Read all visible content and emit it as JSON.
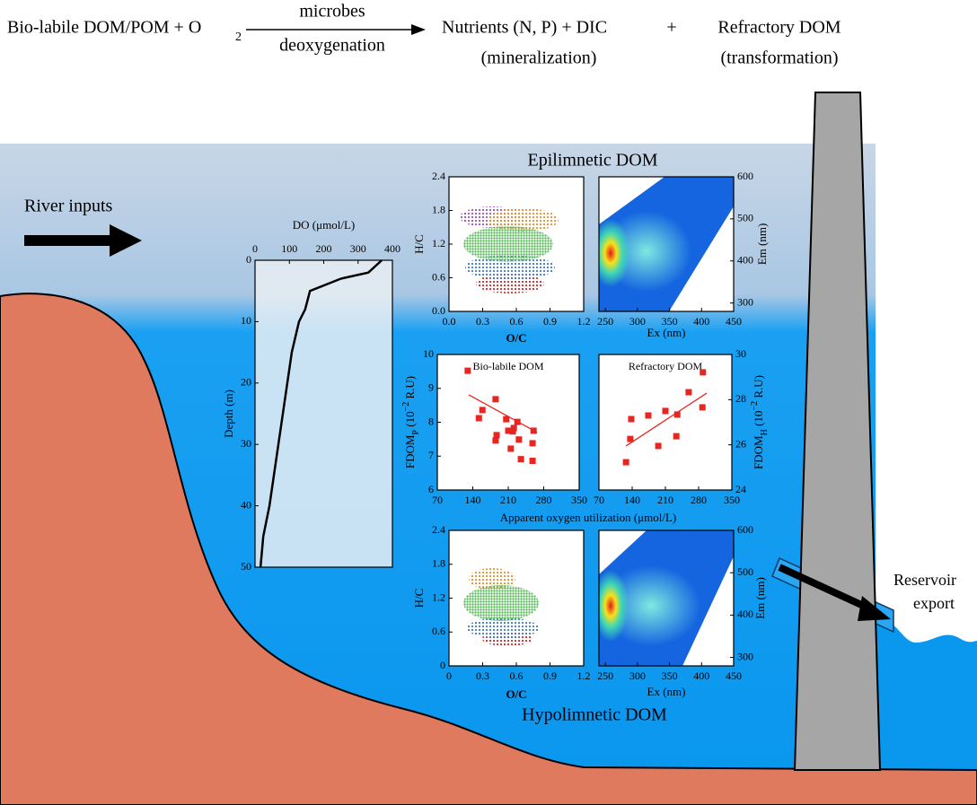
{
  "equation": {
    "reactants": "Bio-labile DOM/POM + O",
    "o2_subscript": "2",
    "arrow_top": "microbes",
    "arrow_bottom": "deoxygenation",
    "product1": "Nutrients (N, P) + DIC",
    "product1_note": "(mineralization)",
    "plus": "+",
    "product2": "Refractory DOM",
    "product2_note": "(transformation)"
  },
  "river_inputs": "River inputs",
  "reservoir_export": [
    "Reservoir",
    "export"
  ],
  "epilimnion_title": "Epilimnetic DOM",
  "hypolimnion_title": "Hypolimnetic DOM",
  "do_profile": {
    "type": "line",
    "x_label": "DO (μmol/L)",
    "y_label": "Depth (m)",
    "xlim": [
      0,
      400
    ],
    "xticks": [
      0,
      100,
      200,
      300,
      400
    ],
    "ylim": [
      0,
      50
    ],
    "yticks": [
      0,
      10,
      20,
      30,
      40,
      50
    ],
    "depth": [
      0,
      2,
      3,
      5,
      8,
      10,
      15,
      20,
      25,
      30,
      35,
      40,
      45,
      50
    ],
    "do": [
      369,
      330,
      250,
      160,
      146,
      128,
      107,
      94,
      81,
      68,
      55,
      42,
      24,
      16
    ]
  },
  "epi_vk": {
    "x_label": "O/C",
    "y_label": "H/C",
    "xlim": [
      0,
      1.2
    ],
    "xticks": [
      {
        "value": 0,
        "label": "0.0"
      },
      0.3,
      0.6,
      0.9,
      1.2
    ],
    "ylim": [
      0,
      2.4
    ],
    "yticks": [
      {
        "value": 0,
        "label": "0.0"
      },
      0.6,
      1.2,
      1.8,
      2.4
    ]
  },
  "epi_eem": {
    "x_label": "Ex (nm)",
    "y_label": "Em (nm)",
    "xlim": [
      240,
      450
    ],
    "xticks": [
      250,
      300,
      350,
      400,
      450
    ],
    "ylim": [
      280,
      600
    ],
    "yticks": [
      300,
      400,
      500,
      600
    ]
  },
  "aou": {
    "x_label": "Apparent oxygen utilization (μmol/L)",
    "bio": {
      "title": "Bio-labile DOM",
      "y_label_parts": [
        "FDOM",
        "P",
        " (10",
        "−2",
        " R.U)"
      ],
      "xlim": [
        70,
        350
      ],
      "xticks": [
        70,
        140,
        210,
        280,
        350
      ],
      "ylim": [
        6,
        10
      ],
      "yticks": [
        6,
        7,
        8,
        9,
        10
      ],
      "color": "#e8251f",
      "x": [
        130,
        159,
        152,
        185,
        187,
        185,
        206,
        210,
        219,
        221,
        228,
        231,
        215,
        235,
        260,
        258,
        258
      ],
      "y": [
        9.52,
        8.36,
        8.12,
        8.68,
        7.62,
        7.46,
        8.09,
        7.75,
        7.73,
        7.83,
        8.01,
        7.49,
        7.22,
        6.91,
        7.75,
        7.38,
        6.86
      ],
      "fit_x": [
        132,
        267
      ],
      "fit_y": [
        8.81,
        7.7
      ]
    },
    "ref": {
      "title": "Refractory DOM",
      "y_label_parts": [
        "FDOM",
        "H",
        " (10",
        "−2",
        " R.U)"
      ],
      "xlim": [
        70,
        350
      ],
      "xticks": [
        70,
        140,
        210,
        280,
        350
      ],
      "ylim": [
        24,
        30
      ],
      "yticks": [
        24,
        26,
        28,
        30
      ],
      "color": "#e8251f",
      "x": [
        127,
        136,
        138,
        174,
        195,
        210,
        235,
        233,
        259,
        289,
        288
      ],
      "y": [
        25.23,
        26.26,
        27.14,
        27.3,
        25.95,
        27.5,
        27.34,
        26.38,
        28.33,
        29.21,
        27.66
      ],
      "fit_x": [
        127,
        297
      ],
      "fit_y": [
        25.95,
        28.29
      ]
    }
  },
  "hypo_vk": {
    "x_label": "O/C",
    "y_label": "H/C",
    "xlim": [
      0,
      1.2
    ],
    "xticks": [
      0,
      0.3,
      0.6,
      0.9,
      1.2
    ],
    "ylim": [
      0,
      2.4
    ],
    "yticks": [
      0,
      0.6,
      1.2,
      1.8,
      2.4
    ]
  },
  "hypo_eem": {
    "x_label": "Ex (nm)",
    "y_label": "Em (nm)",
    "xlim": [
      240,
      450
    ],
    "xticks": [
      250,
      300,
      350,
      400,
      450
    ],
    "ylim": [
      280,
      600
    ],
    "yticks": [
      300,
      400,
      500,
      600
    ]
  }
}
